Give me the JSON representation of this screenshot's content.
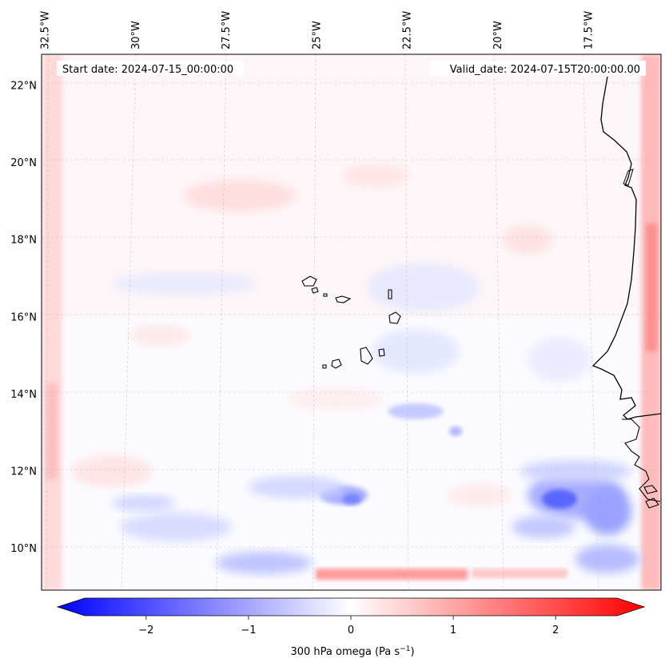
{
  "start_date_label": "Start date: 2024-07-15_00:00:00",
  "valid_date_label": "Valid_date: 2024-07-15T20:00:00.00",
  "colorbar": {
    "label_text": "300 hPa omega (Pa s",
    "label_exp": "−1",
    "label_close": ")",
    "range": [
      -2.6,
      2.6
    ],
    "ticks": [
      {
        "value": -2,
        "text": "−2"
      },
      {
        "value": -1,
        "text": "−1"
      },
      {
        "value": 0,
        "text": "0"
      },
      {
        "value": 1,
        "text": "1"
      },
      {
        "value": 2,
        "text": "2"
      }
    ],
    "low_color": "#0000ff",
    "mid_color": "#ffffff",
    "high_color": "#ff0000"
  },
  "lon_labels": [
    {
      "value": -32.5,
      "text": "32.5°W"
    },
    {
      "value": -30,
      "text": "30°W"
    },
    {
      "value": -27.5,
      "text": "27.5°W"
    },
    {
      "value": -25,
      "text": "25°W"
    },
    {
      "value": -22.5,
      "text": "22.5°W"
    },
    {
      "value": -20,
      "text": "20°W"
    },
    {
      "value": -17.5,
      "text": "17.5°W"
    }
  ],
  "lat_labels": [
    {
      "value": 22,
      "text": "22°N"
    },
    {
      "value": 20,
      "text": "20°N"
    },
    {
      "value": 18,
      "text": "18°N"
    },
    {
      "value": 16,
      "text": "16°N"
    },
    {
      "value": 14,
      "text": "14°N"
    },
    {
      "value": 12,
      "text": "12°N"
    },
    {
      "value": 10,
      "text": "10°N"
    }
  ],
  "map_extent": {
    "lon_min": -32.6,
    "lon_max": -15.5,
    "lat_min": 8.9,
    "lat_max": 22.8
  }
}
